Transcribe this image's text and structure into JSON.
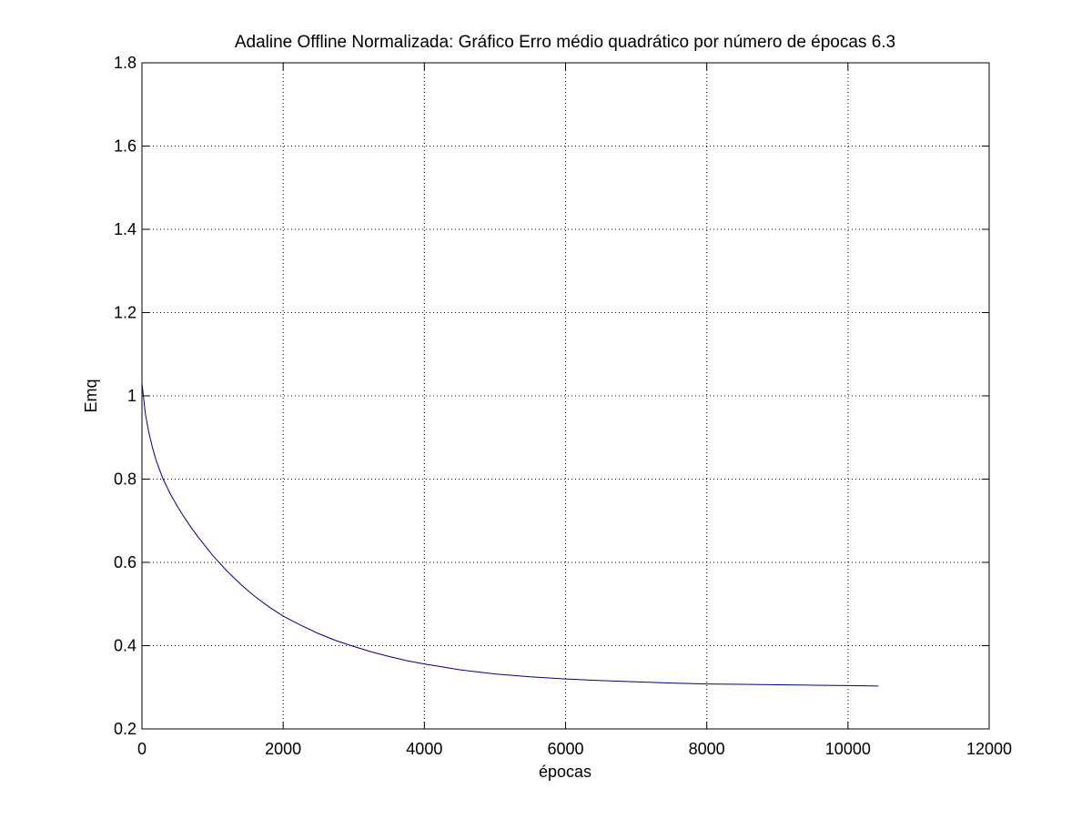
{
  "chart_data": {
    "type": "line",
    "title": "Adaline Offline Normalizada: Gráfico Erro médio quadrático por número de épocas 6.3",
    "xlabel": "épocas",
    "ylabel": "Emq",
    "xlim": [
      0,
      12000
    ],
    "ylim": [
      0.2,
      1.8
    ],
    "xticks": [
      0,
      2000,
      4000,
      6000,
      8000,
      10000,
      12000
    ],
    "yticks": [
      0.2,
      0.4,
      0.6,
      0.8,
      1,
      1.2,
      1.4,
      1.6,
      1.8
    ],
    "xtick_labels": [
      "0",
      "2000",
      "4000",
      "6000",
      "8000",
      "10000",
      "12000"
    ],
    "ytick_labels": [
      "0.2",
      "0.4",
      "0.6",
      "0.8",
      "1",
      "1.2",
      "1.4",
      "1.6",
      "1.8"
    ],
    "grid": true,
    "grid_style": "dotted",
    "series": [
      {
        "color": "#00008b",
        "x": [
          0,
          20,
          50,
          100,
          150,
          200,
          300,
          400,
          500,
          600,
          700,
          800,
          1000,
          1200,
          1400,
          1600,
          1800,
          2000,
          2250,
          2500,
          2750,
          3000,
          3250,
          3500,
          3750,
          4000,
          4500,
          5000,
          5500,
          6000,
          6500,
          7000,
          7500,
          8000,
          8500,
          9000,
          9500,
          10000,
          10430
        ],
        "y": [
          1.03,
          1.0,
          0.955,
          0.91,
          0.875,
          0.845,
          0.8,
          0.765,
          0.735,
          0.708,
          0.683,
          0.66,
          0.617,
          0.58,
          0.547,
          0.518,
          0.493,
          0.471,
          0.449,
          0.429,
          0.412,
          0.398,
          0.385,
          0.374,
          0.364,
          0.356,
          0.342,
          0.332,
          0.325,
          0.32,
          0.316,
          0.313,
          0.31,
          0.308,
          0.307,
          0.306,
          0.305,
          0.304,
          0.303
        ]
      }
    ]
  }
}
